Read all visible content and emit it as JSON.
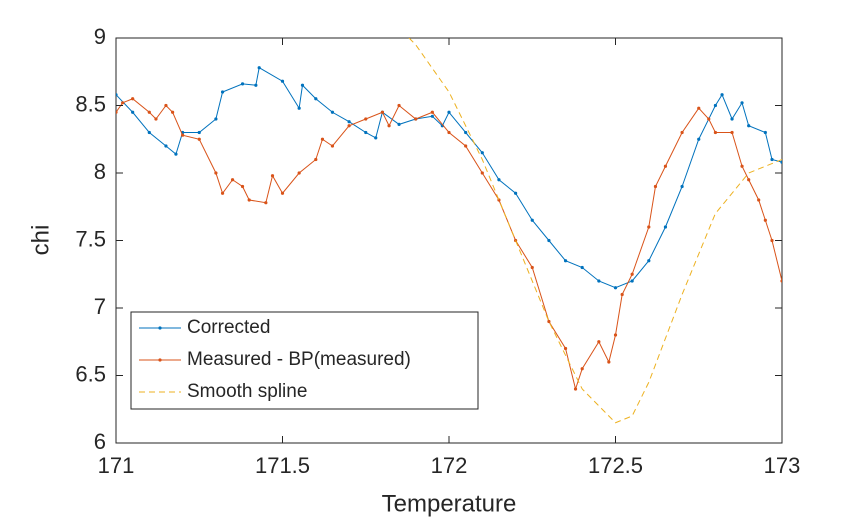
{
  "chart_data": {
    "type": "line",
    "xlabel": "Temperature",
    "ylabel": "chi",
    "xlim": [
      171,
      173
    ],
    "xticks": [
      171,
      171.5,
      172,
      172.5,
      173
    ],
    "ylim": [
      6,
      9
    ],
    "yticks": [
      6,
      6.5,
      7,
      7.5,
      8,
      8.5,
      9
    ],
    "legend": "lower left",
    "series": [
      {
        "name": "Corrected",
        "color": "#0072bd",
        "style": "solid-dots",
        "x": [
          171.0,
          171.05,
          171.1,
          171.15,
          171.18,
          171.2,
          171.25,
          171.3,
          171.32,
          171.38,
          171.42,
          171.43,
          171.5,
          171.55,
          171.56,
          171.6,
          171.65,
          171.7,
          171.75,
          171.78,
          171.8,
          171.85,
          171.9,
          171.95,
          171.98,
          172.0,
          172.05,
          172.1,
          172.15,
          172.2,
          172.25,
          172.3,
          172.35,
          172.4,
          172.45,
          172.5,
          172.55,
          172.6,
          172.65,
          172.7,
          172.75,
          172.8,
          172.82,
          172.85,
          172.88,
          172.9,
          172.95,
          172.97,
          173.0
        ],
        "values": [
          8.58,
          8.45,
          8.3,
          8.2,
          8.14,
          8.3,
          8.3,
          8.4,
          8.6,
          8.66,
          8.65,
          8.78,
          8.68,
          8.48,
          8.65,
          8.55,
          8.45,
          8.38,
          8.3,
          8.26,
          8.45,
          8.36,
          8.4,
          8.42,
          8.35,
          8.45,
          8.3,
          8.15,
          7.95,
          7.85,
          7.65,
          7.5,
          7.35,
          7.3,
          7.2,
          7.15,
          7.2,
          7.35,
          7.6,
          7.9,
          8.25,
          8.5,
          8.58,
          8.4,
          8.52,
          8.35,
          8.3,
          8.1,
          8.08
        ]
      },
      {
        "name": "Measured - BP(measured)",
        "color": "#d95319",
        "style": "solid-dots",
        "x": [
          171.0,
          171.02,
          171.05,
          171.1,
          171.12,
          171.15,
          171.17,
          171.2,
          171.25,
          171.3,
          171.32,
          171.35,
          171.38,
          171.4,
          171.45,
          171.47,
          171.5,
          171.55,
          171.6,
          171.62,
          171.65,
          171.7,
          171.75,
          171.8,
          171.82,
          171.85,
          171.9,
          171.95,
          172.0,
          172.05,
          172.1,
          172.15,
          172.2,
          172.25,
          172.3,
          172.35,
          172.38,
          172.4,
          172.45,
          172.48,
          172.5,
          172.52,
          172.55,
          172.6,
          172.62,
          172.65,
          172.7,
          172.75,
          172.78,
          172.8,
          172.85,
          172.88,
          172.9,
          172.93,
          172.95,
          172.97,
          173.0
        ],
        "values": [
          8.45,
          8.52,
          8.55,
          8.45,
          8.4,
          8.5,
          8.45,
          8.28,
          8.25,
          8.0,
          7.85,
          7.95,
          7.9,
          7.8,
          7.78,
          7.98,
          7.85,
          8.0,
          8.1,
          8.25,
          8.2,
          8.35,
          8.4,
          8.45,
          8.35,
          8.5,
          8.4,
          8.45,
          8.3,
          8.2,
          8.0,
          7.8,
          7.5,
          7.3,
          6.9,
          6.7,
          6.4,
          6.55,
          6.75,
          6.6,
          6.8,
          7.1,
          7.25,
          7.6,
          7.9,
          8.05,
          8.3,
          8.48,
          8.4,
          8.3,
          8.3,
          8.05,
          7.95,
          7.8,
          7.65,
          7.5,
          7.2
        ]
      },
      {
        "name": "Smooth spline",
        "color": "#edb120",
        "style": "dashed",
        "x": [
          171.88,
          171.9,
          172.0,
          172.1,
          172.2,
          172.3,
          172.4,
          172.5,
          172.55,
          172.6,
          172.7,
          172.8,
          172.9,
          173.0
        ],
        "values": [
          9.0,
          8.95,
          8.6,
          8.1,
          7.5,
          6.9,
          6.4,
          6.15,
          6.2,
          6.45,
          7.1,
          7.7,
          8.0,
          8.1
        ]
      }
    ]
  }
}
